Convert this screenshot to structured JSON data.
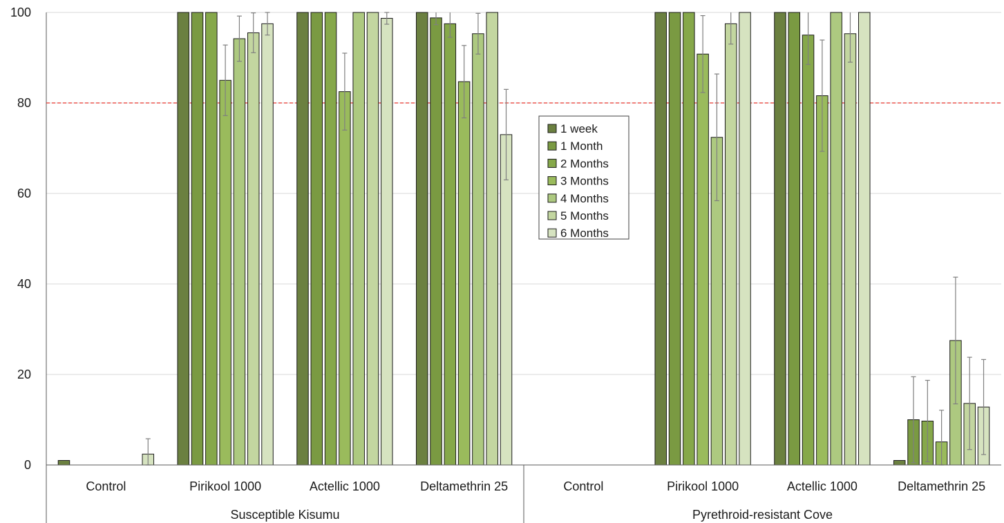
{
  "chart_data": {
    "type": "bar",
    "title": "",
    "xlabel": "",
    "ylabel": "",
    "ylim": [
      0,
      100
    ],
    "yticks": [
      0,
      20,
      40,
      60,
      80,
      100
    ],
    "grid": true,
    "threshold": 80,
    "threshold_color": "#e8342c",
    "legend_position": "center",
    "groups": [
      "Susceptible Kisumu",
      "Pyrethroid-resistant Cove"
    ],
    "categories": [
      "Control",
      "Pirikool 1000",
      "Actellic 1000",
      "Deltamethrin 25",
      "Control",
      "Pirikool 1000",
      "Actellic 1000",
      "Deltamethrin 25"
    ],
    "series": [
      {
        "name": "1 week",
        "color": "#6b8040",
        "values": [
          1,
          100,
          100,
          100,
          0,
          100,
          100,
          1
        ],
        "errors": [
          0,
          0,
          0,
          0,
          0,
          0,
          0,
          0
        ]
      },
      {
        "name": "1 Month",
        "color": "#7a9a42",
        "values": [
          0,
          100,
          100,
          98.8,
          0,
          100,
          100,
          10
        ],
        "errors": [
          0,
          0,
          0,
          1.5,
          0,
          0,
          0,
          9.5
        ]
      },
      {
        "name": "2 Months",
        "color": "#86a84a",
        "values": [
          0,
          100,
          100,
          97.5,
          0,
          100,
          95,
          9.7
        ],
        "errors": [
          0,
          0,
          0,
          3,
          0,
          0,
          6.5,
          9
        ]
      },
      {
        "name": "3 Months",
        "color": "#9abb5c",
        "values": [
          0,
          85,
          82.5,
          84.7,
          0,
          90.8,
          81.6,
          5.1
        ],
        "errors": [
          0,
          7.8,
          8.5,
          8,
          0,
          8.5,
          12.3,
          7
        ]
      },
      {
        "name": "4 Months",
        "color": "#adc980",
        "values": [
          0,
          94.2,
          100,
          95.3,
          0,
          72.4,
          100,
          27.5
        ],
        "errors": [
          0,
          5,
          0,
          4.5,
          0,
          14,
          0,
          14
        ]
      },
      {
        "name": "5 Months",
        "color": "#c3d6a0",
        "values": [
          0,
          95.5,
          100,
          100,
          0,
          97.5,
          95.3,
          13.6
        ],
        "errors": [
          0,
          4.4,
          0,
          0,
          0,
          4.5,
          6.3,
          10.2
        ]
      },
      {
        "name": "6 Months",
        "color": "#d6e3c0",
        "values": [
          2.4,
          97.5,
          98.7,
          73,
          0,
          100,
          100,
          12.8
        ],
        "errors": [
          3.4,
          2.5,
          1.3,
          10,
          0,
          0,
          0,
          10.5
        ]
      }
    ]
  }
}
